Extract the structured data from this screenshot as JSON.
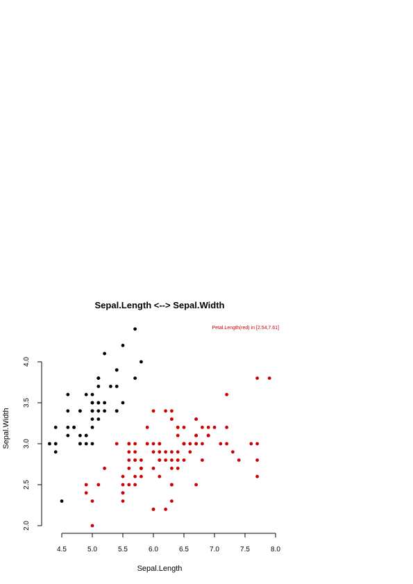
{
  "chart_data": {
    "type": "scatter",
    "title": "Sepal.Length <--> Sepal.Width",
    "annotation": "Petal.Length(red) in [2.54,7.61]",
    "xlabel": "Sepal.Length",
    "ylabel": "Sepal.Width",
    "xlim": [
      4.3,
      8.0
    ],
    "ylim": [
      2.0,
      4.4
    ],
    "x_ticks": [
      "4.5",
      "5.0",
      "5.5",
      "6.0",
      "6.5",
      "7.0",
      "7.5",
      "8.0"
    ],
    "y_ticks": [
      "2.0",
      "2.5",
      "3.0",
      "3.5",
      "4.0"
    ],
    "grid": false,
    "colors": {
      "black": "#000000",
      "red": "#cc0000"
    },
    "series": [
      {
        "color": "#000000",
        "points": [
          [
            5.1,
            3.5
          ],
          [
            4.9,
            3.0
          ],
          [
            4.7,
            3.2
          ],
          [
            4.6,
            3.1
          ],
          [
            5.0,
            3.6
          ],
          [
            5.4,
            3.9
          ],
          [
            4.6,
            3.4
          ],
          [
            5.0,
            3.4
          ],
          [
            4.4,
            2.9
          ],
          [
            4.9,
            3.1
          ],
          [
            5.4,
            3.7
          ],
          [
            4.8,
            3.4
          ],
          [
            4.8,
            3.0
          ],
          [
            4.3,
            3.0
          ],
          [
            5.8,
            4.0
          ],
          [
            5.7,
            4.4
          ],
          [
            5.4,
            3.9
          ],
          [
            5.1,
            3.5
          ],
          [
            5.7,
            3.8
          ],
          [
            5.1,
            3.8
          ],
          [
            5.4,
            3.4
          ],
          [
            5.1,
            3.7
          ],
          [
            4.6,
            3.6
          ],
          [
            5.1,
            3.3
          ],
          [
            4.8,
            3.4
          ],
          [
            5.0,
            3.0
          ],
          [
            5.0,
            3.4
          ],
          [
            5.2,
            3.5
          ],
          [
            5.2,
            3.4
          ],
          [
            4.7,
            3.2
          ],
          [
            4.8,
            3.1
          ],
          [
            5.4,
            3.4
          ],
          [
            5.2,
            4.1
          ],
          [
            5.5,
            4.2
          ],
          [
            4.9,
            3.1
          ],
          [
            5.0,
            3.2
          ],
          [
            5.5,
            3.5
          ],
          [
            4.9,
            3.6
          ],
          [
            4.4,
            3.0
          ],
          [
            5.1,
            3.4
          ],
          [
            5.0,
            3.5
          ],
          [
            4.5,
            2.3
          ],
          [
            4.4,
            3.2
          ],
          [
            5.0,
            3.5
          ],
          [
            5.1,
            3.8
          ],
          [
            4.8,
            3.0
          ],
          [
            5.1,
            3.8
          ],
          [
            4.6,
            3.2
          ],
          [
            5.3,
            3.7
          ],
          [
            5.0,
            3.3
          ]
        ]
      },
      {
        "color": "#cc0000",
        "points": [
          [
            7.0,
            3.2
          ],
          [
            6.4,
            3.2
          ],
          [
            6.9,
            3.1
          ],
          [
            5.5,
            2.3
          ],
          [
            6.5,
            2.8
          ],
          [
            5.7,
            2.8
          ],
          [
            6.3,
            3.3
          ],
          [
            4.9,
            2.4
          ],
          [
            6.6,
            2.9
          ],
          [
            5.2,
            2.7
          ],
          [
            5.0,
            2.0
          ],
          [
            5.9,
            3.0
          ],
          [
            6.0,
            2.2
          ],
          [
            6.1,
            2.9
          ],
          [
            5.6,
            2.9
          ],
          [
            6.7,
            3.1
          ],
          [
            5.6,
            3.0
          ],
          [
            5.8,
            2.7
          ],
          [
            6.2,
            2.2
          ],
          [
            5.6,
            2.5
          ],
          [
            5.9,
            3.2
          ],
          [
            6.1,
            2.8
          ],
          [
            6.3,
            2.5
          ],
          [
            6.1,
            2.8
          ],
          [
            6.4,
            2.9
          ],
          [
            6.6,
            3.0
          ],
          [
            6.8,
            2.8
          ],
          [
            6.7,
            3.0
          ],
          [
            6.0,
            2.9
          ],
          [
            5.7,
            2.6
          ],
          [
            5.5,
            2.4
          ],
          [
            5.5,
            2.4
          ],
          [
            5.8,
            2.7
          ],
          [
            6.0,
            2.7
          ],
          [
            5.4,
            3.0
          ],
          [
            6.0,
            3.4
          ],
          [
            6.7,
            3.1
          ],
          [
            6.3,
            2.3
          ],
          [
            5.6,
            3.0
          ],
          [
            5.5,
            2.5
          ],
          [
            5.5,
            2.6
          ],
          [
            6.1,
            3.0
          ],
          [
            5.8,
            2.6
          ],
          [
            5.0,
            2.3
          ],
          [
            5.6,
            2.7
          ],
          [
            5.7,
            3.0
          ],
          [
            5.7,
            2.9
          ],
          [
            6.2,
            2.9
          ],
          [
            5.1,
            2.5
          ],
          [
            5.7,
            2.8
          ],
          [
            6.3,
            3.3
          ],
          [
            5.8,
            2.7
          ],
          [
            7.1,
            3.0
          ],
          [
            6.3,
            2.9
          ],
          [
            6.5,
            3.0
          ],
          [
            7.6,
            3.0
          ],
          [
            4.9,
            2.5
          ],
          [
            7.3,
            2.9
          ],
          [
            6.7,
            2.5
          ],
          [
            7.2,
            3.6
          ],
          [
            6.5,
            3.2
          ],
          [
            6.4,
            2.7
          ],
          [
            6.8,
            3.0
          ],
          [
            5.7,
            2.5
          ],
          [
            5.8,
            2.8
          ],
          [
            6.4,
            3.2
          ],
          [
            6.5,
            3.0
          ],
          [
            7.7,
            3.8
          ],
          [
            7.7,
            2.6
          ],
          [
            6.0,
            2.2
          ],
          [
            6.9,
            3.2
          ],
          [
            5.6,
            2.8
          ],
          [
            7.7,
            2.8
          ],
          [
            6.3,
            2.7
          ],
          [
            6.7,
            3.3
          ],
          [
            7.2,
            3.2
          ],
          [
            6.2,
            2.8
          ],
          [
            6.1,
            3.0
          ],
          [
            6.4,
            2.8
          ],
          [
            7.2,
            3.0
          ],
          [
            7.4,
            2.8
          ],
          [
            7.9,
            3.8
          ],
          [
            6.4,
            2.8
          ],
          [
            6.3,
            2.8
          ],
          [
            6.1,
            2.6
          ],
          [
            7.7,
            3.0
          ],
          [
            6.3,
            3.4
          ],
          [
            6.4,
            3.1
          ],
          [
            6.0,
            3.0
          ],
          [
            6.9,
            3.1
          ],
          [
            6.7,
            3.1
          ],
          [
            6.9,
            3.1
          ],
          [
            5.8,
            2.7
          ],
          [
            6.8,
            3.2
          ],
          [
            6.7,
            3.3
          ],
          [
            6.7,
            3.0
          ],
          [
            6.3,
            2.5
          ],
          [
            6.5,
            3.0
          ],
          [
            6.2,
            3.4
          ],
          [
            5.9,
            3.0
          ]
        ]
      }
    ]
  }
}
